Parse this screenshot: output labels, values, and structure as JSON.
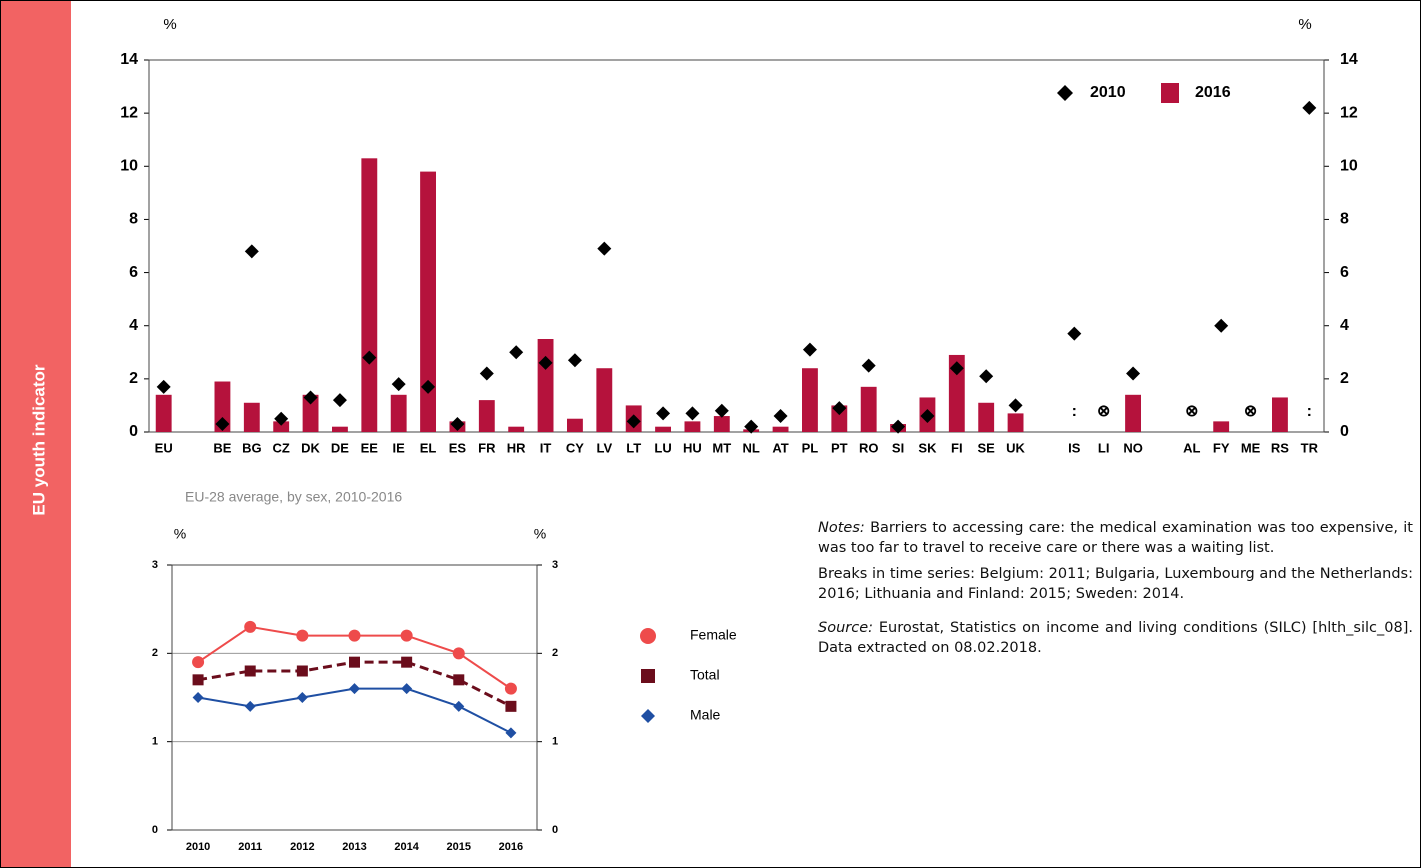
{
  "sidebar": "EU youth indicator",
  "chart_data": [
    {
      "type": "bar",
      "y_label": "%",
      "y2_label": "%",
      "categories": [
        "EU",
        null,
        "BE",
        "BG",
        "CZ",
        "DK",
        "DE",
        "EE",
        "IE",
        "EL",
        "ES",
        "FR",
        "HR",
        "IT",
        "CY",
        "LV",
        "LT",
        "LU",
        "HU",
        "MT",
        "NL",
        "AT",
        "PL",
        "PT",
        "RO",
        "SI",
        "SK",
        "FI",
        "SE",
        "UK",
        null,
        "IS",
        "LI",
        "NO",
        null,
        "AL",
        "FY",
        "ME",
        "RS",
        "TR"
      ],
      "series": [
        {
          "name": "2010",
          "color": "#000000",
          "marker": "diamond",
          "values": [
            1.7,
            null,
            0.3,
            6.8,
            0.5,
            1.3,
            1.2,
            2.8,
            1.8,
            1.7,
            0.3,
            2.2,
            3.0,
            2.6,
            2.7,
            6.9,
            0.4,
            0.7,
            0.7,
            0.8,
            0.2,
            0.6,
            3.1,
            0.9,
            2.5,
            0.2,
            0.6,
            2.4,
            2.1,
            1.0,
            null,
            3.7,
            null,
            2.2,
            null,
            null,
            4.0,
            null,
            null,
            12.2
          ]
        },
        {
          "name": "2016",
          "color": "#b5123c",
          "marker": "bar",
          "values": [
            1.4,
            null,
            1.9,
            1.1,
            0.4,
            1.4,
            0.2,
            10.3,
            1.4,
            9.8,
            0.4,
            1.2,
            0.2,
            3.5,
            0.5,
            2.4,
            1.0,
            0.2,
            0.4,
            0.6,
            0.1,
            0.2,
            2.4,
            1.0,
            1.7,
            0.3,
            1.3,
            2.9,
            1.1,
            0.7,
            null,
            null,
            null,
            1.4,
            null,
            null,
            0.4,
            null,
            1.3,
            null
          ],
          "value_labels": [
            null,
            null,
            null,
            null,
            null,
            null,
            null,
            null,
            null,
            null,
            null,
            null,
            null,
            null,
            null,
            null,
            null,
            null,
            null,
            null,
            null,
            null,
            null,
            null,
            null,
            null,
            null,
            null,
            null,
            null,
            null,
            ":",
            "⊗",
            null,
            null,
            "⊗",
            null,
            "⊗",
            null,
            ":"
          ]
        }
      ],
      "ylim": [
        0,
        14
      ],
      "yticks": [
        0,
        2,
        4,
        6,
        8,
        10,
        12,
        14
      ],
      "y2lim": [
        0,
        14
      ],
      "y2ticks": [
        0,
        2,
        4,
        6,
        8,
        10,
        12,
        14
      ],
      "grid": false,
      "legend": "upper right"
    },
    {
      "type": "line",
      "subtitle": "EU-28 average, by sex, 2010-2016",
      "y_label": "%",
      "y2_label": "%",
      "categories": [
        "2010",
        "2011",
        "2012",
        "2013",
        "2014",
        "2015",
        "2016"
      ],
      "series": [
        {
          "name": "Female",
          "color": "#ee4b4b",
          "marker": "circle",
          "dash": false,
          "values": [
            1.9,
            2.3,
            2.2,
            2.2,
            2.2,
            2.0,
            1.6
          ]
        },
        {
          "name": "Total",
          "color": "#6b0d1c",
          "marker": "square",
          "dash": true,
          "values": [
            1.7,
            1.8,
            1.8,
            1.9,
            1.9,
            1.7,
            1.4
          ]
        },
        {
          "name": "Male",
          "color": "#1f4fa3",
          "marker": "diamond",
          "dash": false,
          "values": [
            1.5,
            1.4,
            1.5,
            1.6,
            1.6,
            1.4,
            1.1
          ]
        }
      ],
      "ylim": [
        0,
        3
      ],
      "yticks": [
        0,
        1,
        2,
        3
      ],
      "y2lim": [
        0,
        3
      ],
      "y2ticks": [
        0,
        1,
        2,
        3
      ],
      "grid": true,
      "legend": "right"
    }
  ],
  "notes": {
    "label": "Notes:",
    "text": " Barriers to accessing care: the medical examination was too expensive, it was too far to travel to receive care or there was a waiting list."
  },
  "breaks": "Breaks in time series: Belgium: 2011; Bulgaria, Luxembourg and the Netherlands: 2016; Lithuania and Finland: 2015; Sweden: 2014.",
  "source": {
    "label": "Source:",
    "text": " Eurostat, Statistics on income and living conditions (SILC) [hlth_silc_08]. Data extracted on 08.02.2018."
  }
}
